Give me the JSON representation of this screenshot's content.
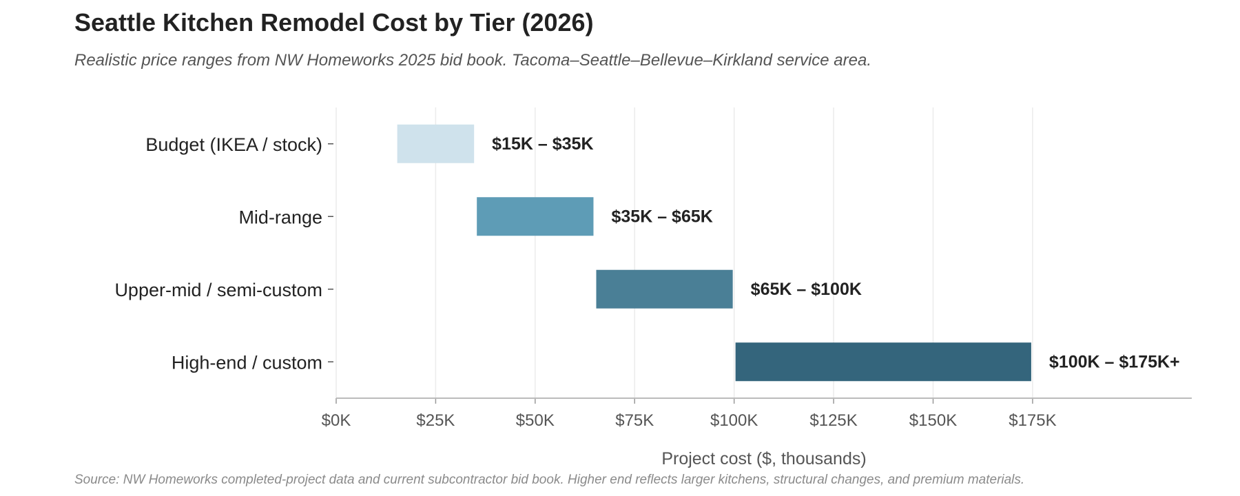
{
  "chart_data": {
    "type": "bar",
    "orientation": "horizontal-range",
    "title": "Seattle Kitchen Remodel Cost by Tier (2026)",
    "subtitle": "Realistic price ranges from NW Homeworks 2025 bid book. Tacoma–Seattle–Bellevue–Kirkland service area.",
    "source": "Source: NW Homeworks completed-project data and current subcontractor bid book. Higher end reflects larger kitchens, structural changes, and premium materials.",
    "xlabel": "Project cost ($, thousands)",
    "xlim": [
      0,
      215
    ],
    "x_ticks": [
      0,
      25,
      50,
      75,
      100,
      125,
      150,
      175
    ],
    "x_tick_labels": [
      "$0K",
      "$25K",
      "$50K",
      "$75K",
      "$100K",
      "$125K",
      "$150K",
      "$175K"
    ],
    "grid": "vertical",
    "categories": [
      "Budget (IKEA / stock)",
      "Mid-range",
      "Upper-mid / semi-custom",
      "High-end / custom"
    ],
    "ranges": [
      {
        "low": 15,
        "high": 35,
        "label": "$15K – $35K",
        "color": "#cfe2ec"
      },
      {
        "low": 35,
        "high": 65,
        "label": "$35K – $65K",
        "color": "#5e9cb6"
      },
      {
        "low": 65,
        "high": 100,
        "label": "$65K – $100K",
        "color": "#4a7f96"
      },
      {
        "low": 100,
        "high": 175,
        "label": "$100K – $175K+",
        "color": "#34657c"
      }
    ]
  }
}
